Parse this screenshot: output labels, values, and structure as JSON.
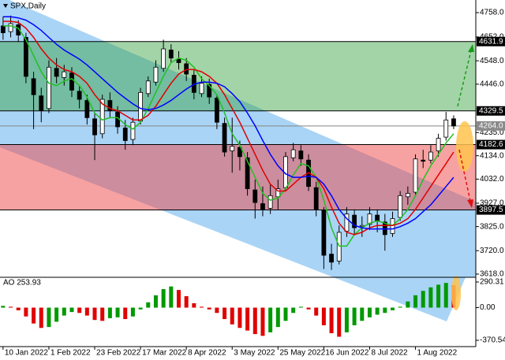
{
  "chart_data": {
    "type": "candlestick",
    "title": "SPX,Daily",
    "open": [
      4700,
      4675,
      4705,
      4650,
      4470,
      4395,
      4340,
      4515,
      4475,
      4495,
      4415,
      4375,
      4295,
      4230,
      4375,
      4325,
      4255,
      4205,
      4285,
      4405,
      4455,
      4515,
      4595,
      4555,
      4535,
      4485,
      4405,
      4445,
      4385,
      4275,
      4155,
      4170,
      4125,
      3985,
      3925,
      3905,
      3955,
      3995,
      4125,
      4155,
      4115,
      3995,
      3895,
      3705,
      3675,
      3805,
      3875,
      3825,
      3835,
      3875,
      3845,
      3795,
      3865,
      3955,
      3975,
      4115,
      4115,
      4155,
      4215,
      4295
    ],
    "high": [
      4740,
      4745,
      4725,
      4670,
      4500,
      4430,
      4550,
      4560,
      4530,
      4520,
      4440,
      4400,
      4320,
      4400,
      4410,
      4350,
      4290,
      4300,
      4430,
      4480,
      4550,
      4640,
      4620,
      4590,
      4560,
      4510,
      4480,
      4470,
      4400,
      4300,
      4300,
      4200,
      4150,
      4030,
      4000,
      4010,
      4030,
      4150,
      4190,
      4180,
      4140,
      4020,
      3910,
      3750,
      3830,
      3910,
      3900,
      3870,
      3910,
      3900,
      3880,
      3890,
      3980,
      4000,
      4140,
      4160,
      4180,
      4230,
      4325,
      4310
    ],
    "low": [
      4640,
      4650,
      4630,
      4450,
      4250,
      4280,
      4320,
      4450,
      4440,
      4390,
      4340,
      4270,
      4115,
      4210,
      4300,
      4230,
      4160,
      4180,
      4270,
      4390,
      4440,
      4500,
      4540,
      4510,
      4460,
      4380,
      4390,
      4360,
      4250,
      4130,
      4060,
      4070,
      3960,
      3860,
      3870,
      3880,
      3900,
      3980,
      4110,
      4090,
      3980,
      3870,
      3640,
      3636,
      3660,
      3780,
      3790,
      3780,
      3810,
      3800,
      3720,
      3780,
      3850,
      3920,
      3960,
      4080,
      4100,
      4130,
      4200,
      4250
    ],
    "close": [
      4670,
      4710,
      4660,
      4480,
      4400,
      4330,
      4520,
      4480,
      4500,
      4420,
      4380,
      4300,
      4225,
      4380,
      4330,
      4260,
      4200,
      4280,
      4410,
      4460,
      4520,
      4600,
      4560,
      4540,
      4490,
      4410,
      4450,
      4390,
      4280,
      4150,
      4175,
      4130,
      3990,
      3930,
      3900,
      3960,
      3990,
      4130,
      4160,
      4120,
      4000,
      3900,
      3700,
      3670,
      3800,
      3880,
      3820,
      3830,
      3880,
      3850,
      3790,
      3860,
      3960,
      3970,
      4120,
      4110,
      4150,
      4210,
      4290,
      4264
    ],
    "bull_color": "#ffffff",
    "bear_color": "#000000",
    "moving_averages": [
      {
        "color": "#22c022",
        "values": [
          4700,
          4700,
          4690,
          4640,
          4570,
          4500,
          4450,
          4440,
          4460,
          4470,
          4440,
          4390,
          4320,
          4290,
          4300,
          4300,
          4270,
          4250,
          4280,
          4340,
          4410,
          4480,
          4540,
          4560,
          4550,
          4520,
          4470,
          4440,
          4400,
          4320,
          4230,
          4180,
          4110,
          4040,
          3970,
          3940,
          3950,
          3990,
          4050,
          4100,
          4090,
          4040,
          3940,
          3820,
          3740,
          3740,
          3790,
          3820,
          3840,
          3850,
          3840,
          3830,
          3860,
          3900,
          3960,
          4030,
          4090,
          4140,
          4190,
          4230
        ]
      },
      {
        "color": "#e00000",
        "values": [
          4720,
          4720,
          4715,
          4690,
          4650,
          4600,
          4560,
          4530,
          4510,
          4500,
          4480,
          4450,
          4400,
          4360,
          4340,
          4330,
          4310,
          4290,
          4290,
          4310,
          4350,
          4400,
          4450,
          4490,
          4510,
          4510,
          4500,
          4480,
          4450,
          4400,
          4340,
          4280,
          4210,
          4140,
          4070,
          4010,
          3980,
          3980,
          4010,
          4040,
          4060,
          4040,
          3990,
          3910,
          3840,
          3800,
          3790,
          3800,
          3820,
          3830,
          3830,
          3830,
          3840,
          3860,
          3900,
          3950,
          4000,
          4050,
          4100,
          4150
        ]
      },
      {
        "color": "#0000ff",
        "values": [
          4740,
          4740,
          4735,
          4725,
          4705,
          4680,
          4650,
          4620,
          4595,
          4575,
          4555,
          4530,
          4500,
          4470,
          4440,
          4410,
          4385,
          4360,
          4340,
          4335,
          4340,
          4355,
          4375,
          4400,
          4425,
          4445,
          4455,
          4455,
          4450,
          4435,
          4405,
          4370,
          4320,
          4265,
          4200,
          4140,
          4090,
          4055,
          4040,
          4040,
          4045,
          4040,
          4010,
          3960,
          3900,
          3860,
          3830,
          3820,
          3815,
          3815,
          3815,
          3815,
          3825,
          3840,
          3860,
          3890,
          3920,
          3960,
          4000,
          4040
        ]
      }
    ],
    "zones": [
      {
        "color": "rgba(50,160,60,0.45)",
        "high": 4631.9,
        "low": 4329.5
      },
      {
        "color": "rgba(240,70,70,0.5)",
        "high": 4182.6,
        "low": 3897.5
      }
    ],
    "last_price": {
      "value": 4264,
      "label": "4264.0"
    },
    "xlim": [
      -0.4,
      61.9
    ],
    "xticks": [
      {
        "value": 0,
        "label": "10 Jan 2022"
      },
      {
        "value": 6,
        "label": "1 Feb 2022"
      },
      {
        "value": 12,
        "label": "23 Feb 2022"
      },
      {
        "value": 18,
        "label": "17 Mar 2022"
      },
      {
        "value": 24,
        "label": "8 Apr 2022"
      },
      {
        "value": 30,
        "label": "3 May 2022"
      },
      {
        "value": 36,
        "label": "25 May 2022"
      },
      {
        "value": 42,
        "label": "16 Jun 2022"
      },
      {
        "value": 48,
        "label": "8 Jul 2022"
      },
      {
        "value": 54,
        "label": "1 Aug 2022"
      }
    ],
    "ylim": [
      3604,
      4813
    ],
    "yticks": [
      {
        "value": 4758,
        "label": "4758.0"
      },
      {
        "value": 4652,
        "label": "4652.0"
      },
      {
        "value": 4548,
        "label": "4548.0"
      },
      {
        "value": 4446,
        "label": "4446.0"
      },
      {
        "value": 4235,
        "label": "4235.0"
      },
      {
        "value": 4134,
        "label": "4134.0"
      },
      {
        "value": 4032,
        "label": "4032.0"
      },
      {
        "value": 3927,
        "label": "3927.0"
      },
      {
        "value": 3825,
        "label": "3825.0"
      },
      {
        "value": 3720,
        "label": "3720.0"
      },
      {
        "value": 3618,
        "label": "3618.0"
      }
    ],
    "oscillator": {
      "type": "histogram",
      "title": "AO 253.93",
      "up_color": "#009900",
      "down_color": "#e00000",
      "values": [
        20,
        10,
        -30,
        -100,
        -180,
        -230,
        -220,
        -160,
        -90,
        -50,
        -60,
        -90,
        -140,
        -150,
        -120,
        -110,
        -130,
        -100,
        -20,
        60,
        140,
        210,
        240,
        200,
        130,
        50,
        10,
        -20,
        -60,
        -130,
        -190,
        -230,
        -260,
        -300,
        -320,
        -280,
        -220,
        -150,
        -60,
        10,
        -20,
        -90,
        -200,
        -290,
        -330,
        -280,
        -200,
        -150,
        -110,
        -80,
        -60,
        -30,
        10,
        70,
        140,
        190,
        230,
        260,
        280,
        253.93
      ],
      "ylim": [
        -442,
        344
      ],
      "yticks": [
        290.31,
        {
          "value": 0,
          "label": "0.00"
        },
        -370.54
      ]
    }
  }
}
